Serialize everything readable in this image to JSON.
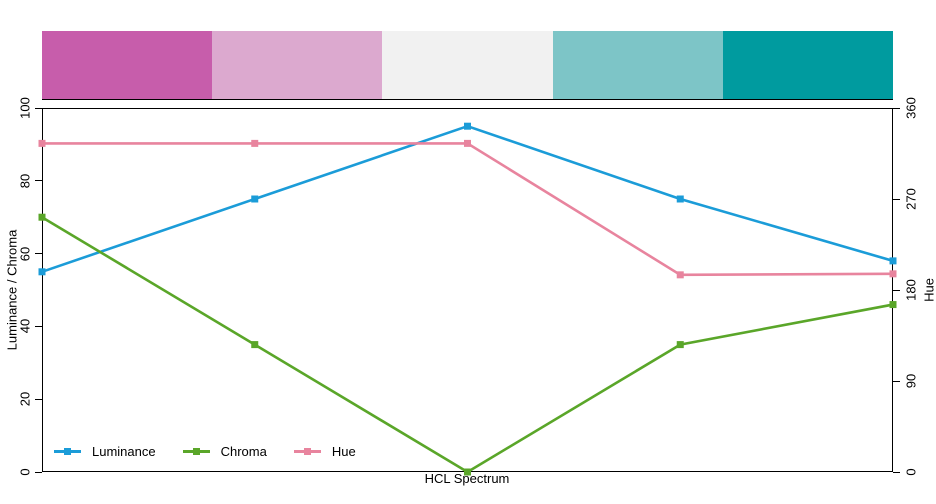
{
  "chart_data": {
    "type": "line",
    "title": "",
    "xlabel": "HCL Spectrum",
    "ylabel_left": "Luminance / Chroma",
    "ylabel_right": "Hue",
    "x": [
      1,
      2,
      3,
      4,
      5
    ],
    "series": [
      {
        "name": "Luminance",
        "axis": "left",
        "color": "#1B9CD8",
        "values": [
          55,
          75,
          95,
          75,
          58
        ]
      },
      {
        "name": "Chroma",
        "axis": "left",
        "color": "#5AA629",
        "values": [
          70,
          35,
          0,
          35,
          46
        ]
      },
      {
        "name": "Hue",
        "axis": "right",
        "color": "#E8849E",
        "values": [
          325,
          325,
          325,
          195,
          196
        ]
      }
    ],
    "left_axis": {
      "range": [
        0,
        100
      ],
      "ticks": [
        0,
        20,
        40,
        60,
        80,
        100
      ]
    },
    "right_axis": {
      "range": [
        0,
        360
      ],
      "ticks": [
        0,
        90,
        180,
        270,
        360
      ]
    },
    "palette_swatches": [
      "#C75DAB",
      "#DCA9CF",
      "#F1F1F1",
      "#7DC5C7",
      "#009B9F"
    ],
    "legend": {
      "position": "bottom-left",
      "labels": [
        "Luminance",
        "Chroma",
        "Hue"
      ]
    },
    "marker": "square",
    "grid": false
  }
}
